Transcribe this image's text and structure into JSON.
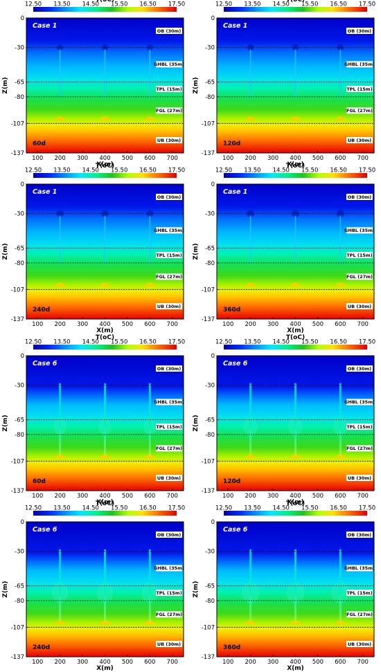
{
  "figure": {
    "colorbar_title": "T(oC)",
    "colorbar_ticks": [
      "12.50",
      "13.50",
      "14.50",
      "15.50",
      "16.50",
      "17.50"
    ],
    "x_label": "X(m)",
    "y_label": "Z(m)"
  },
  "chart_data": [
    {
      "type": "heatmap",
      "case_label": "Case  1",
      "time_label": "60d",
      "cooling_extent": 0.25
    },
    {
      "type": "heatmap",
      "case_label": "Case  1",
      "time_label": "120d",
      "cooling_extent": 0.3
    },
    {
      "type": "heatmap",
      "case_label": "Case  1",
      "time_label": "240d",
      "cooling_extent": 0.35
    },
    {
      "type": "heatmap",
      "case_label": "Case  1",
      "time_label": "360d",
      "cooling_extent": 0.4
    },
    {
      "type": "heatmap",
      "case_label": "Case  6",
      "time_label": "60d",
      "cooling_extent": 0.4
    },
    {
      "type": "heatmap",
      "case_label": "Case  6",
      "time_label": "120d",
      "cooling_extent": 0.55
    },
    {
      "type": "heatmap",
      "case_label": "Case  6",
      "time_label": "240d",
      "cooling_extent": 0.75
    },
    {
      "type": "heatmap",
      "case_label": "Case  6",
      "time_label": "360d",
      "cooling_extent": 0.9
    }
  ],
  "shared_axes": {
    "x_ticks": [
      100,
      200,
      300,
      400,
      500,
      600,
      700
    ],
    "x_range": [
      50,
      750
    ],
    "z_ticks": [
      0,
      -30,
      -65,
      -80,
      -107,
      -137
    ],
    "z_range": [
      -137,
      0
    ],
    "colorbar_range": [
      12.5,
      17.5
    ],
    "boundaries_z": [
      -30,
      -65,
      -80,
      -107
    ],
    "well_x": [
      200,
      400,
      600
    ]
  },
  "layers": [
    {
      "label": "OB  (30m)",
      "z": -13
    },
    {
      "label": "GHBL  (35m)",
      "z": -47
    },
    {
      "label": "TPL  (15m)",
      "z": -72
    },
    {
      "label": "FGL  (27m)",
      "z": -94
    },
    {
      "label": "UB  (30m)",
      "z": -124
    }
  ]
}
